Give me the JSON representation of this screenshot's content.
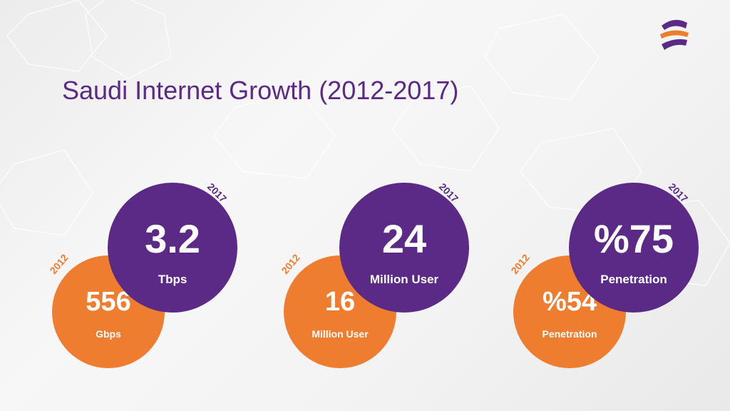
{
  "slide": {
    "title": "Saudi Internet Growth (2012-2017)"
  },
  "colors": {
    "purple": "#5b2a86",
    "orange": "#ee7d2f"
  },
  "logo": {
    "icon": "brand-logo-icon"
  },
  "stats": [
    {
      "year_old": "2012",
      "value_old": "556",
      "unit_old": "Gbps",
      "year_new": "2017",
      "value_new": "3.2",
      "unit_new": "Tbps"
    },
    {
      "year_old": "2012",
      "value_old": "16",
      "unit_old": "Million User",
      "year_new": "2017",
      "value_new": "24",
      "unit_new": "Million User"
    },
    {
      "year_old": "2012",
      "value_old": "%54",
      "unit_old": "Penetration",
      "year_new": "2017",
      "value_new": "%75",
      "unit_new": "Penetration"
    }
  ]
}
